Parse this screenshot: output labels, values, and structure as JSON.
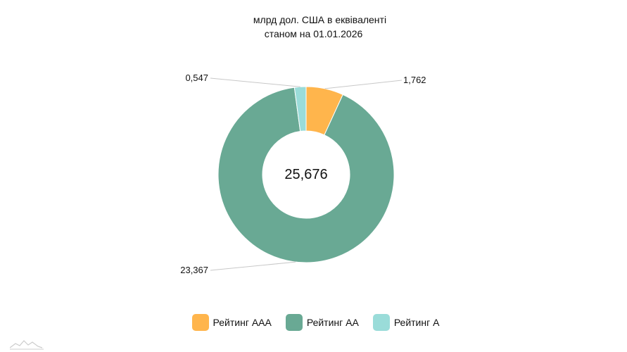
{
  "chart_data": {
    "type": "pie",
    "title": "млрд дол. США в еквіваленті",
    "subtitle": "станом на 01.01.2026",
    "total_label": "25,676",
    "categories": [
      "Рейтинг AAA",
      "Рейтинг AA",
      "Рейтинг A"
    ],
    "values": [
      1.762,
      23.367,
      0.547
    ],
    "value_labels": [
      "1,762",
      "23,367",
      "0,547"
    ],
    "colors": [
      "#ffb54c",
      "#69a994",
      "#9adcd9"
    ],
    "legend_position": "bottom"
  }
}
